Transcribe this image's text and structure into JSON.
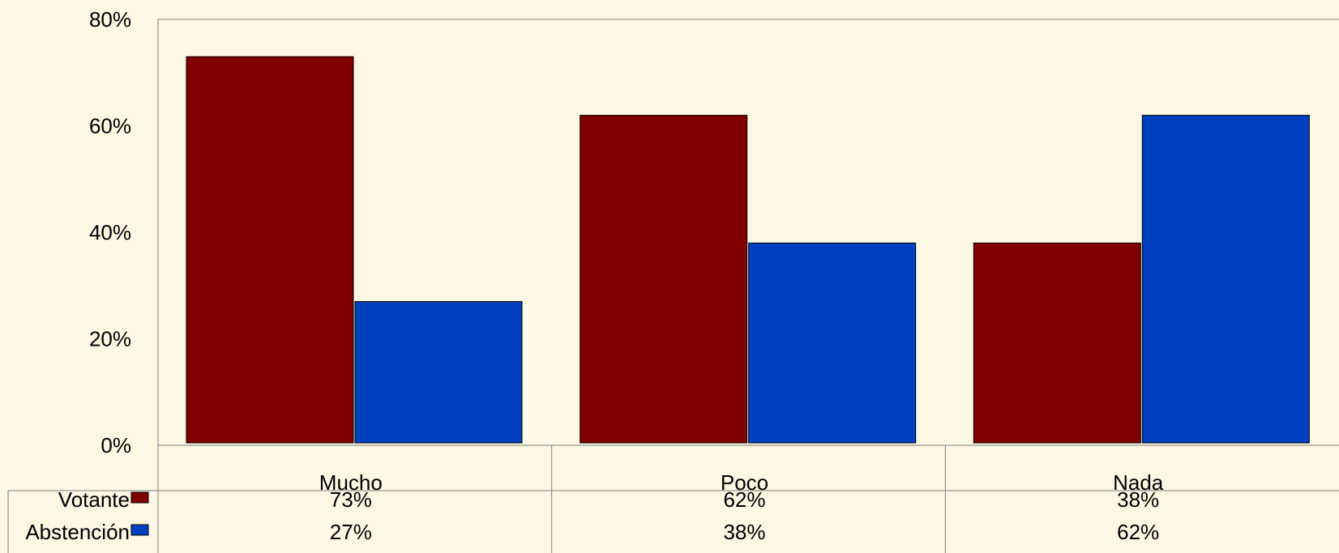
{
  "chart_data": {
    "type": "bar",
    "categories": [
      "Mucho",
      "Poco",
      "Nada"
    ],
    "series": [
      {
        "name": "Votante",
        "values": [
          73,
          62,
          38
        ],
        "labels": [
          "73%",
          "62%",
          "38%"
        ],
        "color": "#800000"
      },
      {
        "name": "Abstención",
        "values": [
          27,
          38,
          62
        ],
        "labels": [
          "27%",
          "38%",
          "62%"
        ],
        "color": "#0040c0"
      }
    ],
    "ylim": [
      0,
      80
    ],
    "yticks": [
      0,
      20,
      40,
      60,
      80
    ],
    "ytick_labels": [
      "0%",
      "20%",
      "40%",
      "60%",
      "80%"
    ],
    "title": "",
    "xlabel": "",
    "ylabel": "",
    "grid": false,
    "legend": "data-table",
    "background": "#fdf8e3"
  }
}
